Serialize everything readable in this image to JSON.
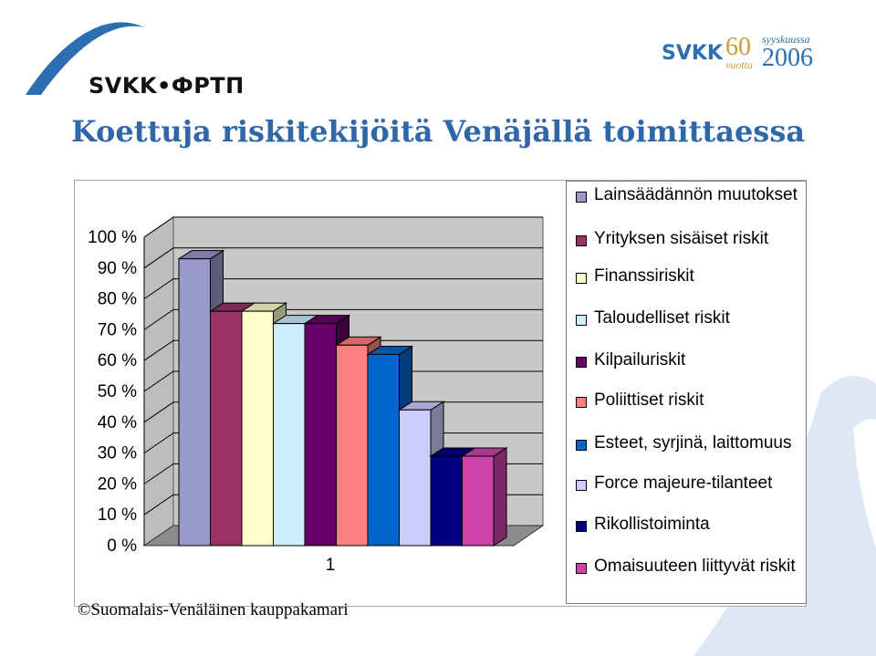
{
  "header": {
    "logo_left_text": "SVKK•ФРТП",
    "logo_right": {
      "brand": "SVKK",
      "sixty": "60",
      "vuotta": "vuotta",
      "month": "syyskuussa",
      "year": "2006"
    },
    "title": "Koettuja riskitekijöitä Venäjällä toimittaessa"
  },
  "chart_data": {
    "type": "bar",
    "style": "3d-clustered",
    "categories": [
      "1"
    ],
    "y_ticks": [
      "0 %",
      "10 %",
      "20 %",
      "30 %",
      "40 %",
      "50 %",
      "60 %",
      "70 %",
      "80 %",
      "90 %",
      "100 %"
    ],
    "ylim": [
      0,
      100
    ],
    "grid": true,
    "legend_position": "right",
    "series": [
      {
        "name": "Lainsäädännön muutokset",
        "values": [
          93
        ],
        "color": "#9999cc"
      },
      {
        "name": "Yrityksen sisäiset riskit",
        "values": [
          76
        ],
        "color": "#993366"
      },
      {
        "name": "Finanssiriskit",
        "values": [
          76
        ],
        "color": "#ffffcc"
      },
      {
        "name": "Taloudelliset riskit",
        "values": [
          72
        ],
        "color": "#cceeff"
      },
      {
        "name": "Kilpailuriskit",
        "values": [
          72
        ],
        "color": "#660066"
      },
      {
        "name": "Poliittiset riskit",
        "values": [
          65
        ],
        "color": "#ff8080"
      },
      {
        "name": "Esteet, syrjinä, laittomuus",
        "values": [
          62
        ],
        "color": "#0066cc"
      },
      {
        "name": "Force majeure-tilanteet",
        "values": [
          44
        ],
        "color": "#ccccff"
      },
      {
        "name": "Rikollistoiminta",
        "values": [
          29
        ],
        "color": "#000080"
      },
      {
        "name": "Omaisuuteen liittyvät riskit",
        "values": [
          29
        ],
        "color": "#cc44aa"
      }
    ]
  },
  "footer": {
    "copyright": "©Suomalais-Venäläinen kauppakamari"
  }
}
